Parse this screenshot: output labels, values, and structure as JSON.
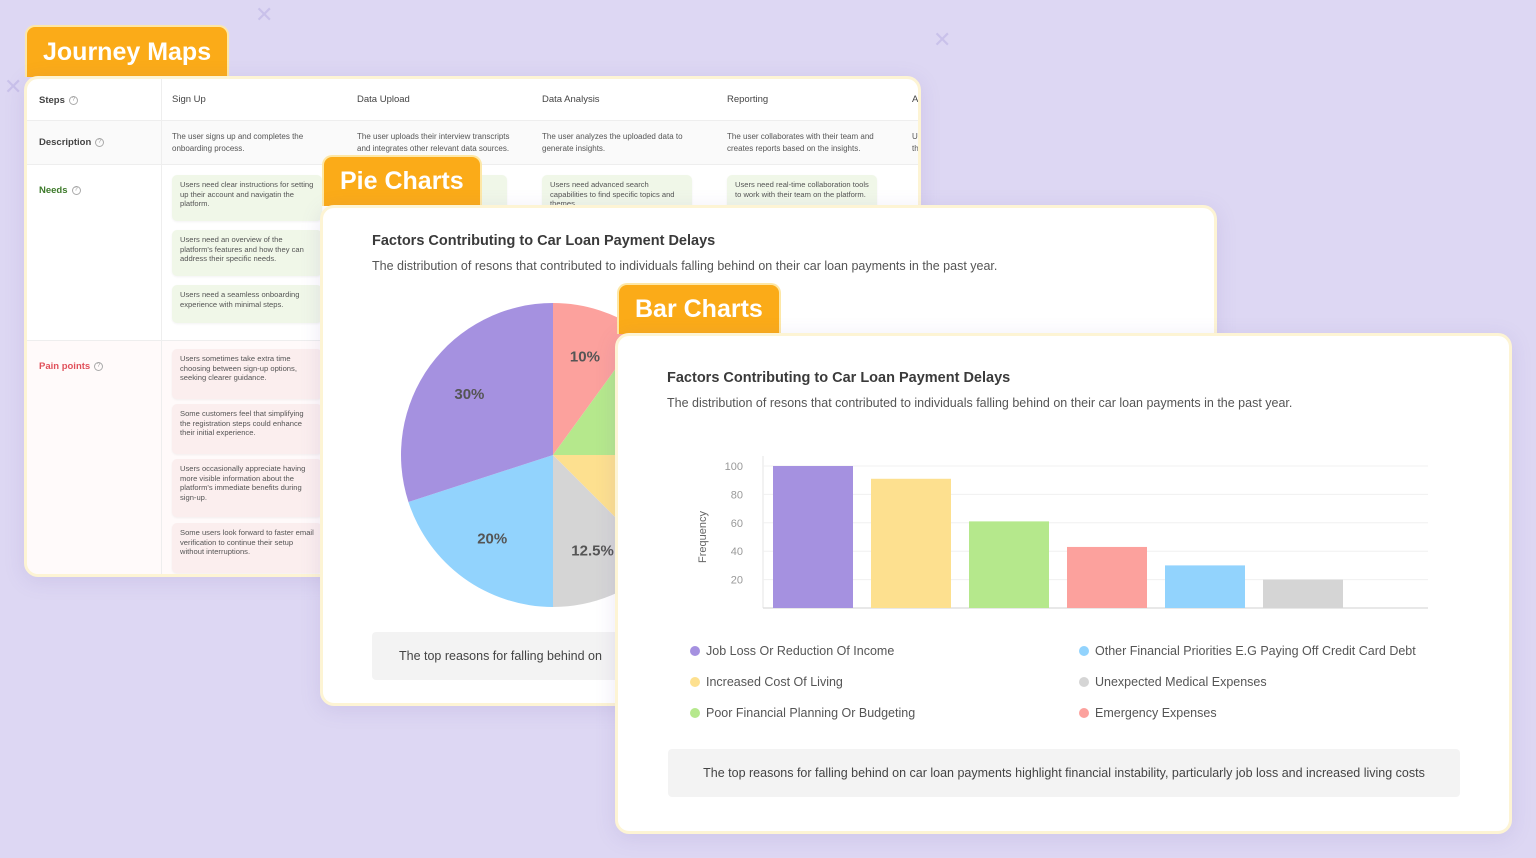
{
  "journey": {
    "tab_label": "Journey Maps",
    "row_labels": {
      "steps": "Steps",
      "description": "Description",
      "needs": "Needs",
      "pain_points": "Pain points"
    },
    "steps": [
      "Sign Up",
      "Data Upload",
      "Data Analysis",
      "Reporting",
      "Ac"
    ],
    "descriptions": [
      "The user signs up and completes the onboarding process.",
      "The user uploads their interview transcripts and integrates other relevant data sources.",
      "The user analyzes the uploaded data to generate insights.",
      "The user collaborates with their team and creates reports based on the insights.",
      "Us th"
    ],
    "needs_signup": [
      "Users need clear instructions for setting up their account and navigatin the platform.",
      "Users need an overview of the platform's features and how they can address their specific needs.",
      "Users need a seamless onboarding experience with minimal steps."
    ],
    "needs_other": [
      "Users need advanced search capabilities to find specific topics and themes.",
      "Users need real-time collaboration tools to work with their team on the platform."
    ],
    "pain_signup": [
      "Users sometimes take extra time choosing between sign-up options, seeking clearer guidance.",
      "Some customers feel that simplifying the registration steps could enhance their initial experience.",
      "Users occasionally appreciate having more visible information about the platform's immediate benefits during sign-up.",
      "Some users look forward to faster email verification to continue their setup without interruptions."
    ]
  },
  "pie": {
    "tab_label": "Pie Charts",
    "title": "Factors Contributing to Car Loan Payment Delays",
    "subtitle": "The distribution of resons that contributed to individuals falling behind on their car loan payments in the past year.",
    "note": "The top reasons for falling behind on"
  },
  "bar": {
    "tab_label": "Bar Charts",
    "title": "Factors Contributing to Car Loan Payment Delays",
    "subtitle": "The distribution of resons that contributed to individuals falling behind on their car loan payments in the past year.",
    "note": "The top reasons for falling behind on car loan payments highlight financial instability, particularly job loss and increased living costs"
  },
  "colors": {
    "accent": "#fbab18",
    "purple": "#a591e0",
    "yellow": "#fde08f",
    "green": "#b5e88c",
    "red": "#fca19d",
    "blue": "#92d3fd",
    "gray": "#d5d5d5"
  },
  "chart_data": [
    {
      "type": "pie",
      "title": "Factors Contributing to Car Loan Payment Delays",
      "slices": [
        {
          "category": "Emergency Expenses",
          "value": 10,
          "label": "10%",
          "color": "#fca19d"
        },
        {
          "category": "Poor Financial Planning Or Budgeting",
          "value": 15,
          "label": "",
          "color": "#b5e88c"
        },
        {
          "category": "Increased Cost Of Living",
          "value": 12.5,
          "label": "",
          "color": "#fde08f"
        },
        {
          "category": "Unexpected Medical Expenses",
          "value": 12.5,
          "label": "12.5%",
          "color": "#d5d5d5"
        },
        {
          "category": "Other Financial Priorities E.G Paying Off Credit Card Debt",
          "value": 20,
          "label": "20%",
          "color": "#92d3fd"
        },
        {
          "category": "Job Loss Or Reduction Of Income",
          "value": 30,
          "label": "30%",
          "color": "#a591e0"
        }
      ]
    },
    {
      "type": "bar",
      "title": "Factors Contributing to Car Loan Payment Delays",
      "ylabel": "Frequency",
      "ylim": [
        0,
        100
      ],
      "yticks": [
        20,
        40,
        60,
        80,
        100
      ],
      "grid": true,
      "legend_position": "bottom",
      "categories": [
        "Job Loss Or Reduction Of Income",
        "Increased Cost Of Living",
        "Poor Financial Planning Or Budgeting",
        "Emergency Expenses",
        "Other Financial Priorities E.G Paying Off Credit Card Debt",
        "Unexpected Medical Expenses"
      ],
      "values": [
        100,
        91,
        61,
        43,
        30,
        20
      ],
      "colors": [
        "#a591e0",
        "#fde08f",
        "#b5e88c",
        "#fca19d",
        "#92d3fd",
        "#d5d5d5"
      ]
    }
  ],
  "legend": [
    {
      "label": "Job Loss Or Reduction Of Income",
      "color": "#a591e0"
    },
    {
      "label": "Increased Cost Of Living",
      "color": "#fde08f"
    },
    {
      "label": "Poor Financial Planning Or Budgeting",
      "color": "#b5e88c"
    },
    {
      "label": "Other Financial Priorities E.G Paying Off Credit Card Debt",
      "color": "#92d3fd"
    },
    {
      "label": "Unexpected Medical Expenses",
      "color": "#d5d5d5"
    },
    {
      "label": "Emergency Expenses",
      "color": "#fca19d"
    }
  ]
}
